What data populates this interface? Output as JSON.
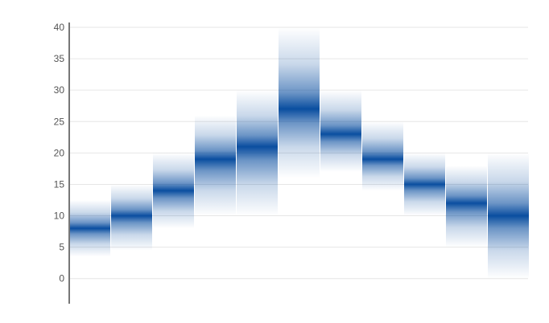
{
  "chart_data": {
    "type": "heatmap",
    "subtype": "density-strips",
    "title": "",
    "xlabel": "",
    "ylabel": "",
    "ylim": [
      -4,
      40
    ],
    "yticks": [
      0,
      5,
      10,
      15,
      20,
      25,
      30,
      35,
      40
    ],
    "grid": true,
    "legend": "none",
    "color": "#0a4ea0",
    "strips": [
      {
        "center": 8,
        "low": 3.5,
        "high": 12.5
      },
      {
        "center": 10,
        "low": 4.5,
        "high": 15
      },
      {
        "center": 14,
        "low": 8,
        "high": 20
      },
      {
        "center": 19,
        "low": 10,
        "high": 26
      },
      {
        "center": 21,
        "low": 10,
        "high": 30
      },
      {
        "center": 27,
        "low": 16,
        "high": 40
      },
      {
        "center": 23,
        "low": 17,
        "high": 30
      },
      {
        "center": 19,
        "low": 14,
        "high": 25
      },
      {
        "center": 15,
        "low": 10,
        "high": 20
      },
      {
        "center": 12,
        "low": 5,
        "high": 18
      },
      {
        "center": 10,
        "low": 0,
        "high": 20
      }
    ]
  }
}
